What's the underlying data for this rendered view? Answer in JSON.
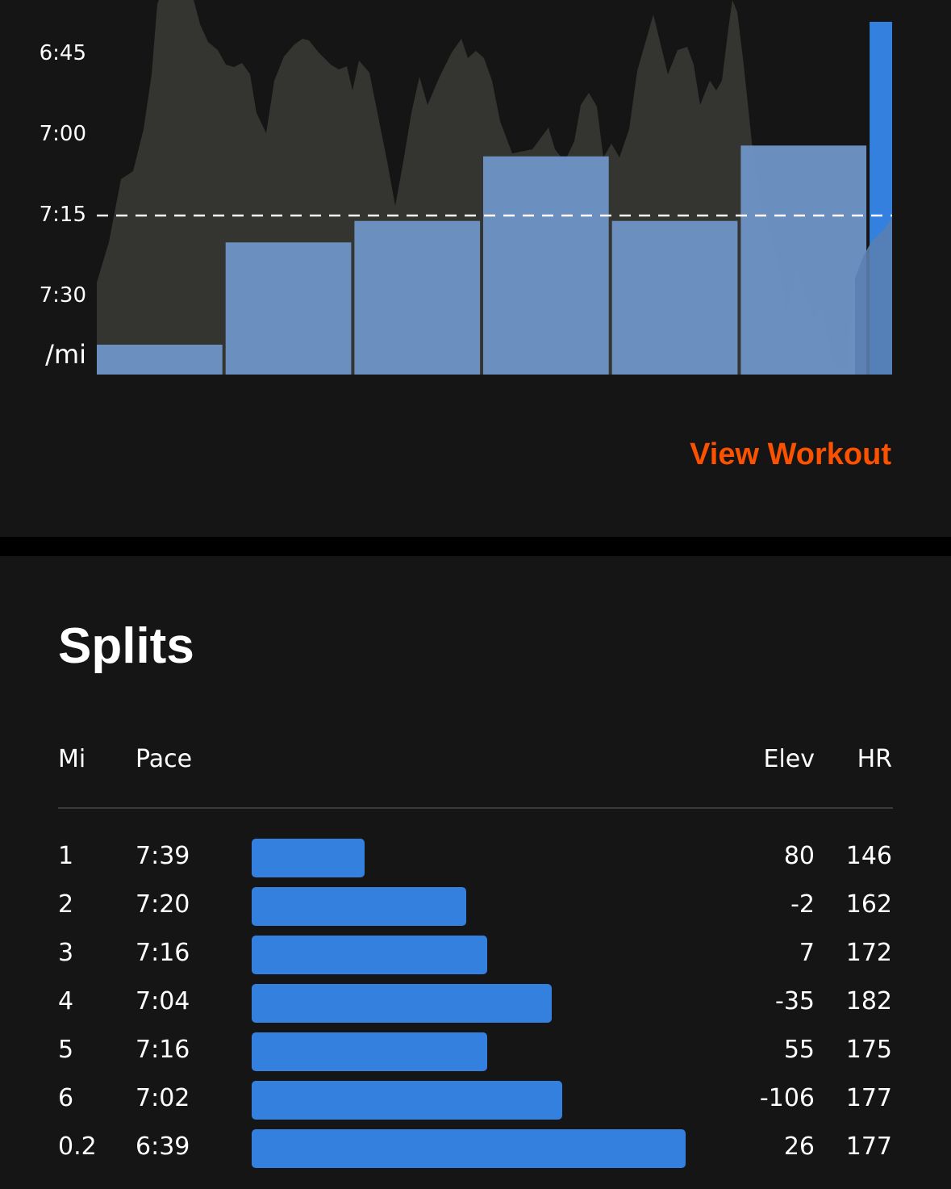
{
  "chart_data": {
    "type": "bar",
    "ylabel": "/mi",
    "y_tick_labels": [
      "6:45",
      "7:00",
      "7:15",
      "7:30"
    ],
    "y_ticks_seconds": [
      405,
      420,
      435,
      450
    ],
    "reference_line_seconds": 435,
    "categories": [
      "1",
      "2",
      "3",
      "4",
      "5",
      "6",
      "0.2"
    ],
    "category_distances_mi": [
      1,
      1,
      1,
      1,
      1,
      1,
      0.2
    ],
    "pace_seconds": [
      459,
      440,
      436,
      424,
      436,
      422,
      399
    ],
    "colors": {
      "bar": "#6f96c7",
      "last_bar": "#3480de",
      "background": "#151515",
      "elevation_fill": "#3a3a36",
      "reference_line": "#ffffff"
    }
  },
  "actions": {
    "view_workout_label": "View Workout"
  },
  "splits": {
    "title": "Splits",
    "headers": {
      "mi": "Mi",
      "pace": "Pace",
      "elev": "Elev",
      "hr": "HR"
    },
    "rows": [
      {
        "mi": "1",
        "pace": "7:39",
        "pace_seconds": 459,
        "elev": "80",
        "hr": "146"
      },
      {
        "mi": "2",
        "pace": "7:20",
        "pace_seconds": 440,
        "elev": "-2",
        "hr": "162"
      },
      {
        "mi": "3",
        "pace": "7:16",
        "pace_seconds": 436,
        "elev": "7",
        "hr": "172"
      },
      {
        "mi": "4",
        "pace": "7:04",
        "pace_seconds": 424,
        "elev": "-35",
        "hr": "182"
      },
      {
        "mi": "5",
        "pace": "7:16",
        "pace_seconds": 436,
        "elev": "55",
        "hr": "175"
      },
      {
        "mi": "6",
        "pace": "7:02",
        "pace_seconds": 422,
        "elev": "-106",
        "hr": "177"
      },
      {
        "mi": "0.2",
        "pace": "6:39",
        "pace_seconds": 399,
        "elev": "26",
        "hr": "177"
      }
    ],
    "bar_color": "#3480de"
  },
  "colors": {
    "accent": "#fc5200",
    "background": "#151515",
    "band": "#000000"
  }
}
